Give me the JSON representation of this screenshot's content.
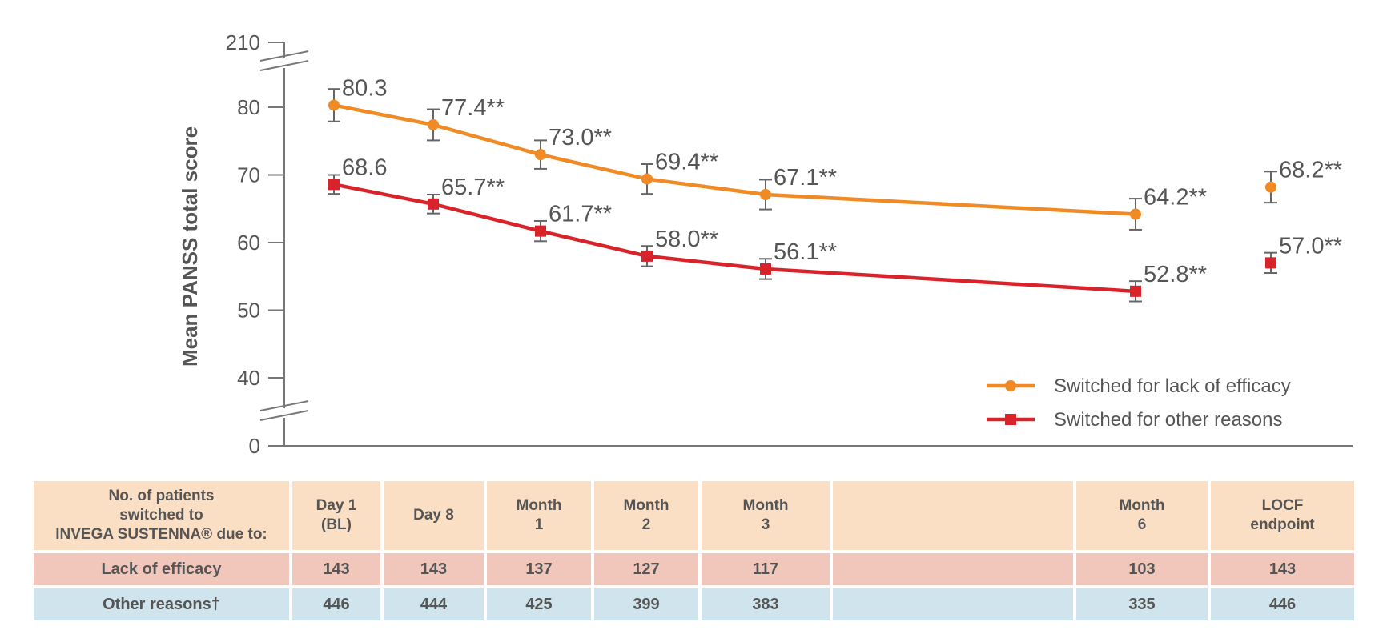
{
  "chart_data": {
    "type": "line",
    "ylabel": "Mean PANSS total score",
    "y_axis": {
      "broken": true,
      "ticks": [
        0,
        40,
        50,
        60,
        70,
        80,
        210
      ]
    },
    "categories": [
      "Day 1 (BL)",
      "Day 8",
      "Month 1",
      "Month 2",
      "Month 3",
      "Month 6",
      "LOCF endpoint"
    ],
    "series": [
      {
        "name": "Switched for lack of efficacy",
        "color": "#f08a24",
        "marker": "circle",
        "values": [
          80.3,
          77.4,
          73.0,
          69.4,
          67.1,
          64.2,
          68.2
        ],
        "labels": [
          "80.3",
          "77.4**",
          "73.0**",
          "69.4**",
          "67.1**",
          "64.2**",
          "68.2**"
        ],
        "error": [
          2.4,
          2.3,
          2.1,
          2.2,
          2.2,
          2.3,
          2.3
        ]
      },
      {
        "name": "Switched for other reasons",
        "color": "#d8232a",
        "marker": "square",
        "values": [
          68.6,
          65.7,
          61.7,
          58.0,
          56.1,
          52.8,
          57.0
        ],
        "labels": [
          "68.6",
          "65.7**",
          "61.7**",
          "58.0**",
          "56.1**",
          "52.8**",
          "57.0**"
        ],
        "error": [
          1.4,
          1.4,
          1.5,
          1.5,
          1.5,
          1.5,
          1.5
        ]
      }
    ],
    "legend_position": "bottom-right",
    "grid": false
  },
  "table": {
    "header_label": "No. of patients\nswitched to\nINVEGA SUSTENNA® due to:",
    "columns": [
      "Day 1\n(BL)",
      "Day 8",
      "Month\n1",
      "Month\n2",
      "Month\n3",
      "",
      "Month\n6",
      "LOCF\nendpoint"
    ],
    "rows": [
      {
        "label": "Lack of efficacy",
        "values": [
          "143",
          "143",
          "137",
          "127",
          "117",
          "",
          "103",
          "143"
        ]
      },
      {
        "label": "Other reasons†",
        "values": [
          "446",
          "444",
          "425",
          "399",
          "383",
          "",
          "335",
          "446"
        ]
      }
    ]
  }
}
